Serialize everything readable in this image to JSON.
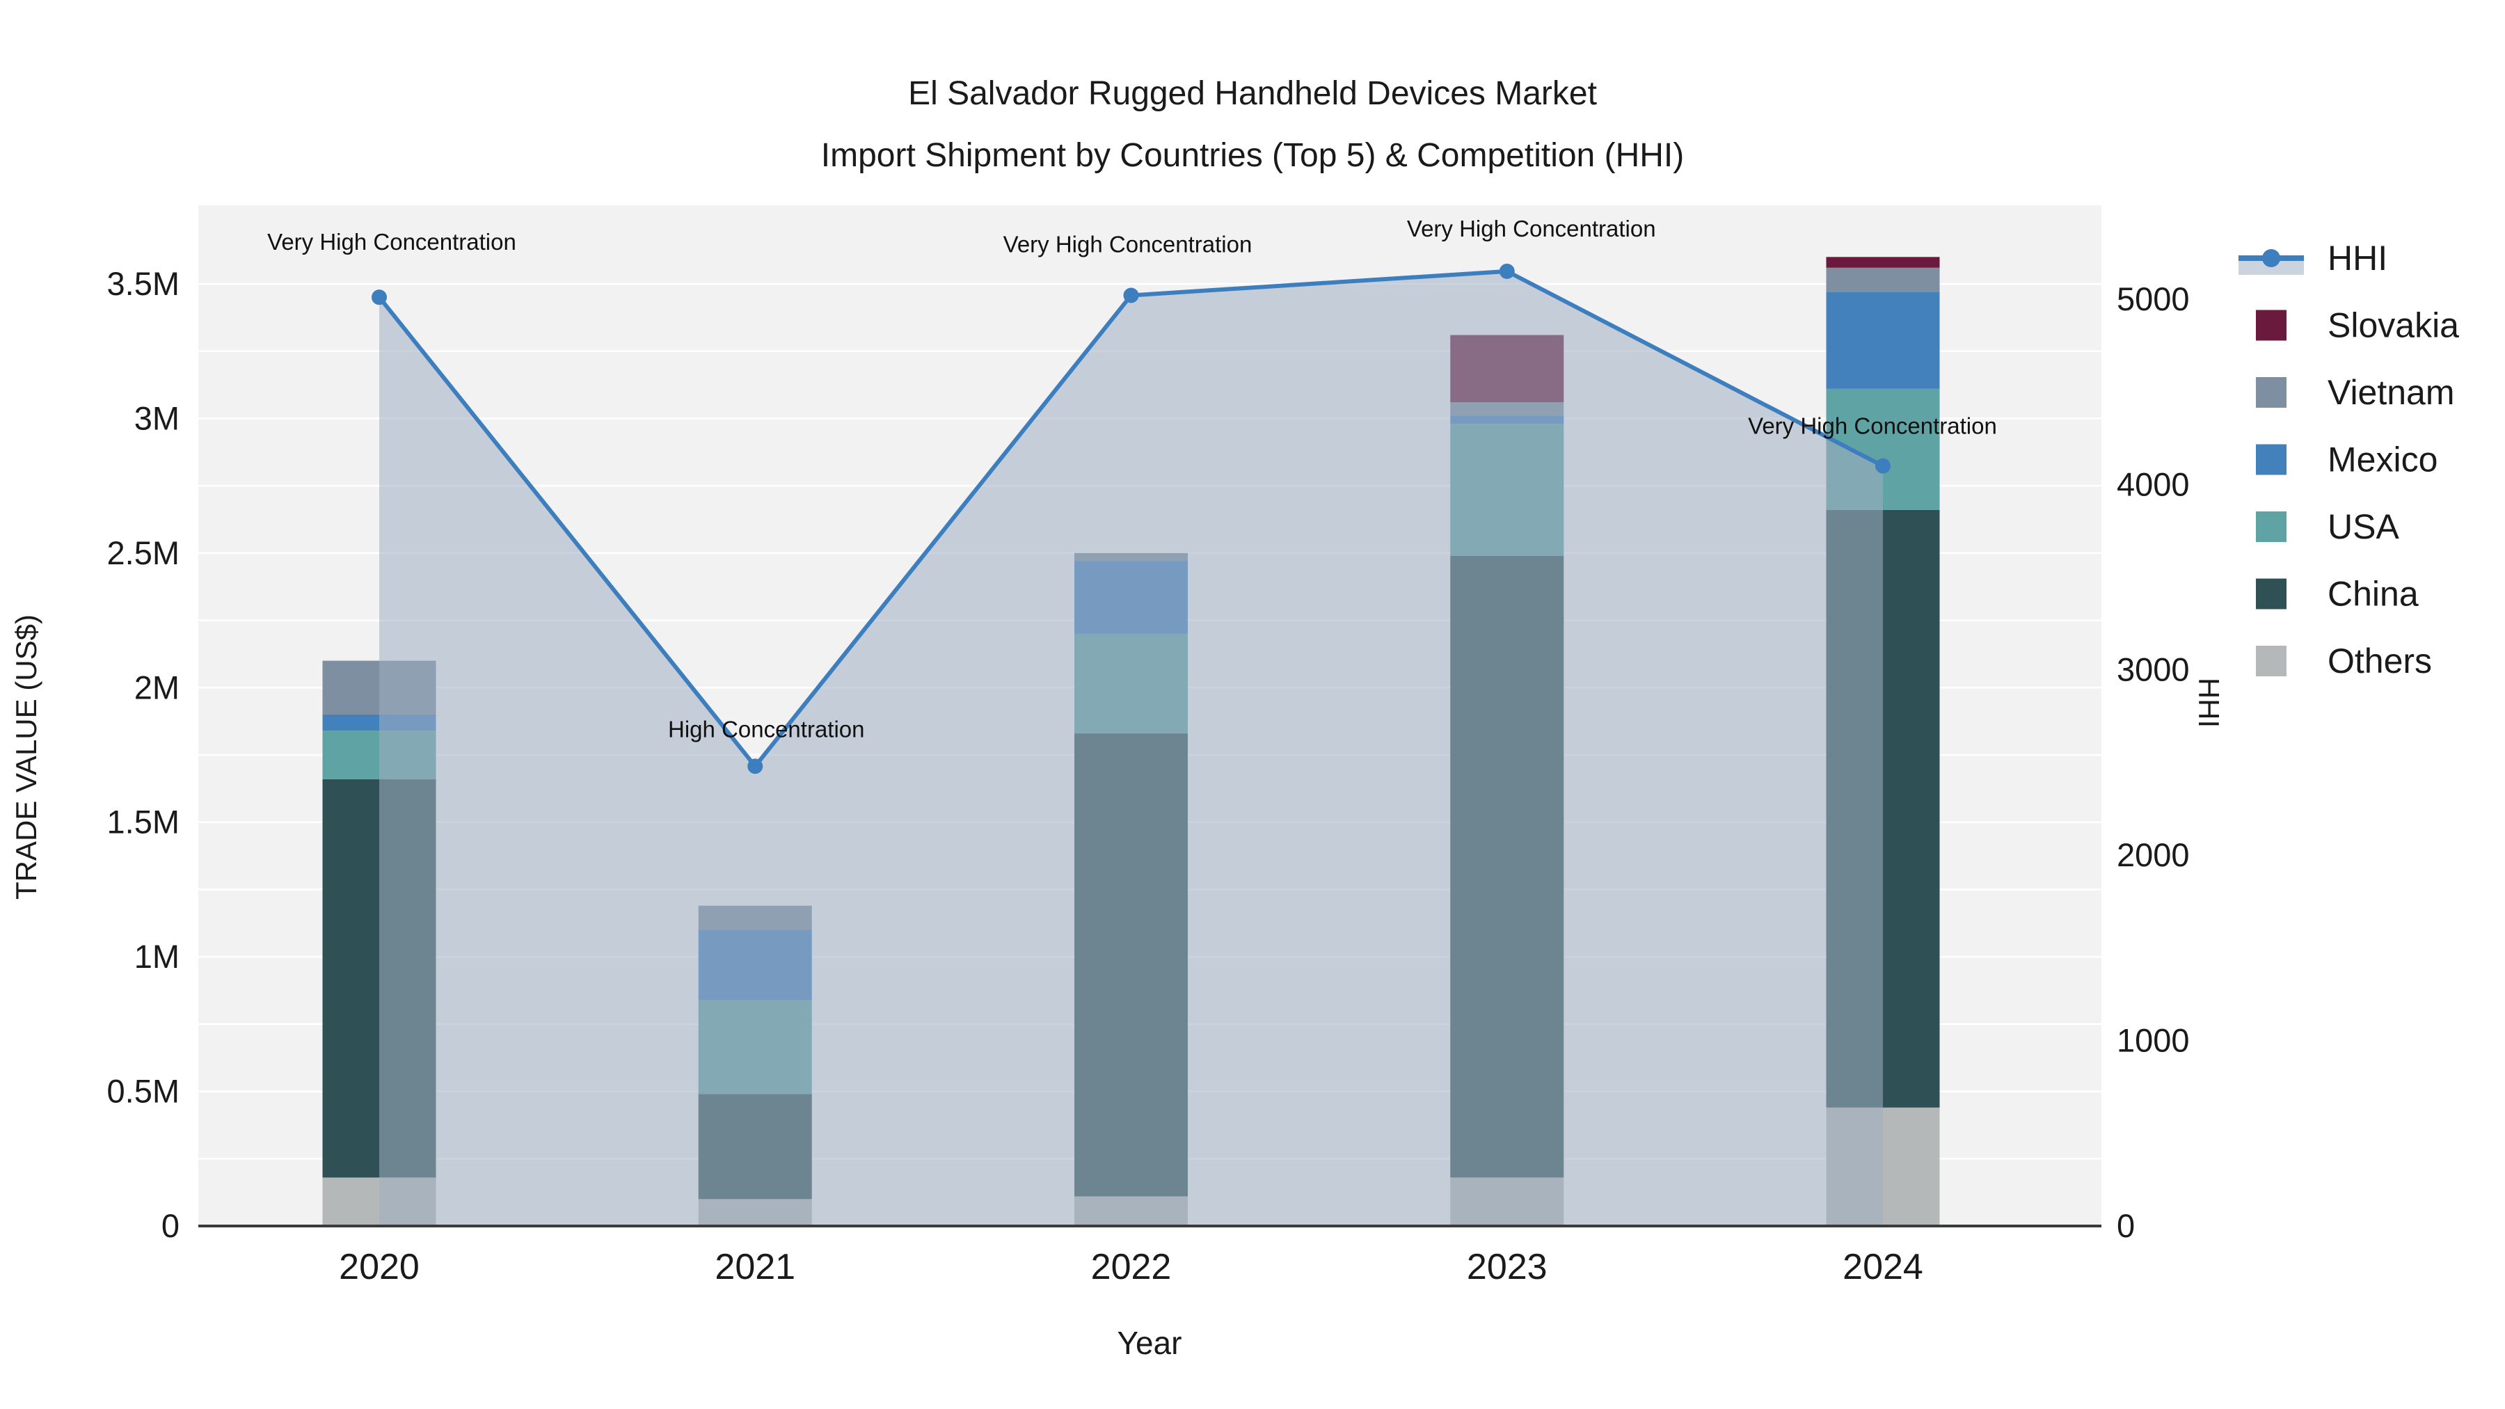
{
  "title": {
    "line1": "El Salvador Rugged Handheld Devices Market",
    "line2": "Import Shipment by Countries (Top 5) & Competition (HHI)"
  },
  "axes": {
    "y_left_title": "TRADE VALUE (US$)",
    "y_right_title": "HHI",
    "x_title": "Year",
    "y_left_ticks": [
      "0",
      "0.5M",
      "1M",
      "1.5M",
      "2M",
      "2.5M",
      "3M",
      "3.5M"
    ],
    "y_left_tick_values": [
      0,
      500000,
      1000000,
      1500000,
      2000000,
      2500000,
      3000000,
      3500000
    ],
    "y_right_ticks": [
      "0",
      "1000",
      "2000",
      "3000",
      "4000",
      "5000"
    ],
    "y_right_tick_values": [
      0,
      1000,
      2000,
      3000,
      4000,
      5000
    ]
  },
  "legend": {
    "items": [
      {
        "label": "HHI",
        "type": "line",
        "color": "#3d7ebf"
      },
      {
        "label": "Slovakia",
        "type": "square",
        "color": "#6a1b3d"
      },
      {
        "label": "Vietnam",
        "type": "square",
        "color": "#7d8fa1"
      },
      {
        "label": "Mexico",
        "type": "square",
        "color": "#4381bd"
      },
      {
        "label": "USA",
        "type": "square",
        "color": "#5fa3a4"
      },
      {
        "label": "China",
        "type": "square",
        "color": "#2f5054"
      },
      {
        "label": "Others",
        "type": "square",
        "color": "#b4b8b8"
      }
    ]
  },
  "colors": {
    "plot_bg": "#f2f2f2",
    "grid": "#ffffff",
    "axis_line": "#3b3b3b",
    "hhi_line": "#3d7ebf",
    "hhi_fill": "rgba(160,175,195,0.55)",
    "text": "#1a1a1a"
  },
  "chart_data": {
    "type": "combo: stacked bar (trade value) + line with area fill (HHI)",
    "title": "El Salvador Rugged Handheld Devices Market — Import Shipment by Countries (Top 5) & Competition (HHI)",
    "categories": [
      "2020",
      "2021",
      "2022",
      "2023",
      "2024"
    ],
    "xlabel": "Year",
    "ylabel_left": "TRADE VALUE (US$)",
    "ylabel_right": "HHI",
    "ylim_left": [
      0,
      3500000
    ],
    "ylim_right": [
      0,
      5000
    ],
    "grid": true,
    "legend_position": "right",
    "bar_series": [
      {
        "name": "Others",
        "color": "#b4b8b8",
        "values": [
          180000,
          100000,
          110000,
          180000,
          440000
        ]
      },
      {
        "name": "China",
        "color": "#2f5054",
        "values": [
          1480000,
          390000,
          1720000,
          2310000,
          2220000
        ]
      },
      {
        "name": "USA",
        "color": "#5fa3a4",
        "values": [
          180000,
          350000,
          370000,
          490000,
          450000
        ]
      },
      {
        "name": "Mexico",
        "color": "#4381bd",
        "values": [
          60000,
          260000,
          270000,
          30000,
          360000
        ]
      },
      {
        "name": "Vietnam",
        "color": "#7d8fa1",
        "values": [
          200000,
          90000,
          30000,
          50000,
          90000
        ]
      },
      {
        "name": "Slovakia",
        "color": "#6a1b3d",
        "values": [
          0,
          0,
          0,
          250000,
          40000
        ]
      }
    ],
    "bar_totals": [
      2100000,
      1190000,
      2500000,
      3310000,
      3600000
    ],
    "line_series": {
      "name": "HHI",
      "color": "#3d7ebf",
      "values": [
        5010,
        2480,
        5020,
        5150,
        4100
      ]
    },
    "annotations": [
      {
        "x": "2020",
        "text": "Very High Concentration"
      },
      {
        "x": "2021",
        "text": "High Concentration"
      },
      {
        "x": "2022",
        "text": "Very High Concentration"
      },
      {
        "x": "2023",
        "text": "Very High Concentration"
      },
      {
        "x": "2024",
        "text": "Very High Concentration"
      }
    ]
  }
}
